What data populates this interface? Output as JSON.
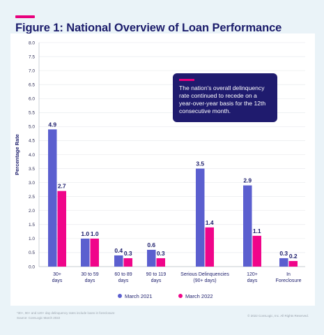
{
  "header": {
    "title": "Figure 1: National Overview of Loan Performance"
  },
  "callout": {
    "text": "The nation's overall delinquency rate continued to recede on a year-over-year basis for the 12th consecutive month."
  },
  "footer": {
    "footnote_line1": "*30+, 90+ and 120+ day delinquency rates include loans in foreclosure",
    "footnote_line2": "Source: CoreLogic March 2022",
    "copyright": "© 2022 CoreLogic, Inc. All Rights Reserved."
  },
  "chart_data": {
    "type": "bar",
    "title": "Figure 1: National Overview of Loan Performance",
    "ylabel": "Percentage Rate",
    "xlabel": "",
    "ylim": [
      0,
      8
    ],
    "yticks": [
      "0.0",
      "0.5",
      "1.0",
      "1.5",
      "2.0",
      "2.5",
      "3.0",
      "3.5",
      "4.0",
      "4.5",
      "5.0",
      "5.5",
      "6.0",
      "6.5",
      "7.0",
      "7.5",
      "8.0"
    ],
    "grid": true,
    "legend_position": "bottom",
    "categories": [
      [
        "30+",
        "days"
      ],
      [
        "30 to 59",
        "days"
      ],
      [
        "60 to 89",
        "days"
      ],
      [
        "90 to 119",
        "days"
      ],
      [
        "Serious Delinquencies",
        "(90+ days)"
      ],
      [
        "120+",
        "days"
      ],
      [
        "In",
        "Foreclosure"
      ]
    ],
    "series": [
      {
        "name": "March 2021",
        "color": "#5b5fcf",
        "values": [
          4.9,
          1.0,
          0.4,
          0.6,
          3.5,
          2.9,
          0.3
        ],
        "labels": [
          "4.9",
          "1.0",
          "0.4",
          "0.6",
          "3.5",
          "2.9",
          "0.3"
        ]
      },
      {
        "name": "March 2022",
        "color": "#f0058a",
        "values": [
          2.7,
          1.0,
          0.3,
          0.3,
          1.4,
          1.1,
          0.2
        ],
        "labels": [
          "2.7",
          "1.0",
          "0.3",
          "0.3",
          "1.4",
          "1.1",
          "0.2"
        ]
      }
    ]
  }
}
